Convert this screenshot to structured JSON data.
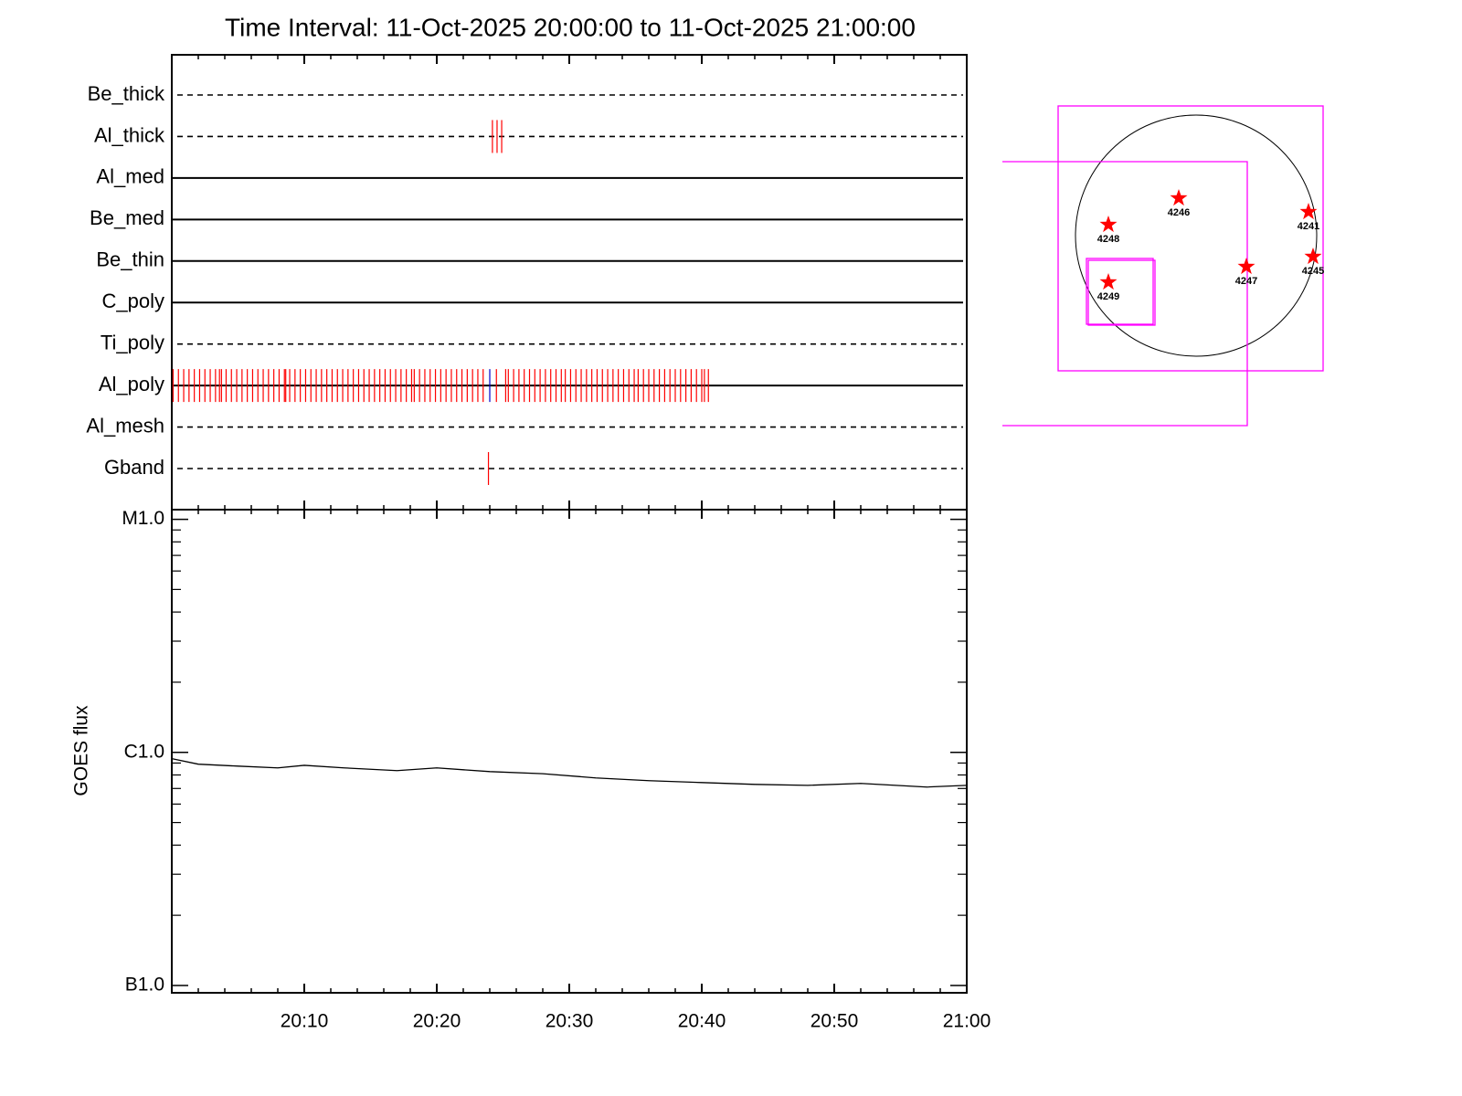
{
  "chart_data": {
    "type": "timeline",
    "title": "Time Interval: 11-Oct-2025 20:00:00 to 11-Oct-2025 21:00:00",
    "xlim": [
      0,
      60
    ],
    "xticks": [
      {
        "value": 10,
        "label": "20:10"
      },
      {
        "value": 20,
        "label": "20:20"
      },
      {
        "value": 30,
        "label": "20:30"
      },
      {
        "value": 40,
        "label": "20:40"
      },
      {
        "value": 50,
        "label": "20:50"
      },
      {
        "value": 60,
        "label": "21:00"
      }
    ],
    "xminorticks": [
      2,
      4,
      6,
      8,
      12,
      14,
      16,
      18,
      22,
      24,
      26,
      28,
      32,
      34,
      36,
      38,
      42,
      44,
      46,
      48,
      52,
      54,
      56,
      58
    ],
    "event_color": "#ff0000",
    "alt_event_color": "#0000cc",
    "rows": [
      {
        "name": "Be_thick",
        "style": "dashed",
        "events": []
      },
      {
        "name": "Al_thick",
        "style": "dashed",
        "events": [
          24.2,
          24.55,
          24.9
        ]
      },
      {
        "name": "Al_med",
        "style": "solid",
        "events": []
      },
      {
        "name": "Be_med",
        "style": "solid",
        "events": []
      },
      {
        "name": "Be_thin",
        "style": "solid",
        "events": []
      },
      {
        "name": "C_poly",
        "style": "solid",
        "events": []
      },
      {
        "name": "Ti_poly",
        "style": "dashed",
        "events": []
      },
      {
        "name": "Al_poly",
        "style": "solid",
        "events": [
          0.1,
          0.5,
          0.9,
          1.3,
          1.7,
          2.1,
          2.5,
          2.9,
          3.3,
          3.6,
          3.75,
          4.1,
          4.5,
          4.9,
          5.3,
          5.7,
          6.1,
          6.5,
          6.9,
          7.3,
          7.7,
          8.1,
          8.5,
          8.6,
          8.9,
          9.3,
          9.7,
          10.1,
          10.5,
          10.9,
          11.3,
          11.7,
          12.1,
          12.5,
          12.9,
          13.3,
          13.7,
          14.1,
          14.5,
          14.9,
          15.3,
          15.7,
          16.1,
          16.5,
          16.9,
          17.3,
          17.7,
          18.1,
          18.3,
          18.7,
          19.1,
          19.5,
          19.9,
          20.3,
          20.7,
          21.1,
          21.5,
          21.9,
          22.3,
          22.7,
          23.1,
          23.5,
          24.5,
          25.2,
          25.4,
          25.8,
          26.2,
          26.6,
          27.0,
          27.4,
          27.8,
          28.2,
          28.6,
          29.0,
          29.4,
          29.7,
          30.1,
          30.5,
          30.9,
          31.3,
          31.7,
          32.1,
          32.5,
          32.9,
          33.3,
          33.7,
          34.1,
          34.5,
          34.9,
          35.2,
          35.6,
          36.0,
          36.4,
          36.8,
          37.2,
          37.6,
          38.0,
          38.4,
          38.8,
          39.2,
          39.6,
          40.0,
          40.2,
          40.5
        ],
        "alt_events": [
          24.0
        ]
      },
      {
        "name": "Al_mesh",
        "style": "dashed",
        "events": []
      },
      {
        "name": "Gband",
        "style": "dashed",
        "events": [
          23.9
        ]
      }
    ],
    "goes": {
      "ylabel": "GOES flux",
      "log_scale": true,
      "color": "#000000",
      "ylim": [
        9.3e-08,
        1.1e-05
      ],
      "yticks": [
        {
          "value": 1e-07,
          "label": "B1.0"
        },
        {
          "value": 1e-06,
          "label": "C1.0"
        },
        {
          "value": 1e-05,
          "label": "M1.0"
        }
      ],
      "yminorticks": [
        2e-07,
        3e-07,
        4e-07,
        5e-07,
        6e-07,
        7e-07,
        8e-07,
        9e-07,
        2e-06,
        3e-06,
        4e-06,
        5e-06,
        6e-06,
        7e-06,
        8e-06,
        9e-06
      ],
      "x": [
        0,
        2,
        5,
        8,
        10,
        13,
        17,
        20,
        24,
        28,
        32,
        36,
        40,
        44,
        48,
        52,
        57,
        60
      ],
      "values": [
        9.4e-07,
        8.9e-07,
        8.73e-07,
        8.58e-07,
        8.8e-07,
        8.58e-07,
        8.35e-07,
        8.58e-07,
        8.27e-07,
        8.1e-07,
        7.77e-07,
        7.56e-07,
        7.42e-07,
        7.29e-07,
        7.22e-07,
        7.36e-07,
        7.1e-07,
        7.22e-07
      ]
    },
    "active_regions": [
      "4246",
      "4241",
      "4248",
      "4247",
      "4245",
      "4249"
    ]
  }
}
